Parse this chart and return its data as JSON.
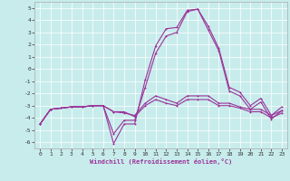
{
  "xlabel": "Windchill (Refroidissement éolien,°C)",
  "bg_color": "#c8ecec",
  "line_color": "#993399",
  "grid_color": "#ffffff",
  "xlim": [
    -0.5,
    23.5
  ],
  "ylim": [
    -6.5,
    5.5
  ],
  "xticks": [
    0,
    1,
    2,
    3,
    4,
    5,
    6,
    7,
    8,
    9,
    10,
    11,
    12,
    13,
    14,
    15,
    16,
    17,
    18,
    19,
    20,
    21,
    22,
    23
  ],
  "yticks": [
    -6,
    -5,
    -4,
    -3,
    -2,
    -1,
    0,
    1,
    2,
    3,
    4,
    5
  ],
  "line1": [
    -4.5,
    -3.3,
    -3.2,
    -3.1,
    -3.1,
    -3.0,
    -3.0,
    -6.1,
    -4.5,
    -4.5,
    -0.9,
    1.9,
    3.3,
    3.4,
    4.8,
    4.9,
    3.5,
    1.7,
    -1.5,
    -1.9,
    -3.0,
    -2.4,
    -3.8,
    -3.1
  ],
  "line2": [
    -4.5,
    -3.3,
    -3.2,
    -3.1,
    -3.1,
    -3.0,
    -3.0,
    -5.3,
    -4.2,
    -4.2,
    -1.5,
    1.3,
    2.7,
    3.0,
    4.7,
    4.9,
    3.2,
    1.5,
    -1.8,
    -2.2,
    -3.3,
    -2.7,
    -4.1,
    -3.4
  ],
  "line3": [
    -4.5,
    -3.3,
    -3.2,
    -3.1,
    -3.1,
    -3.0,
    -3.0,
    -3.5,
    -3.6,
    -3.8,
    -2.8,
    -2.2,
    -2.5,
    -2.8,
    -2.2,
    -2.2,
    -2.2,
    -2.8,
    -2.8,
    -3.1,
    -3.3,
    -3.3,
    -3.8,
    -3.4
  ],
  "line4": [
    -4.5,
    -3.3,
    -3.2,
    -3.1,
    -3.1,
    -3.0,
    -3.0,
    -3.5,
    -3.5,
    -3.9,
    -3.0,
    -2.5,
    -2.8,
    -3.0,
    -2.5,
    -2.5,
    -2.5,
    -3.0,
    -3.0,
    -3.2,
    -3.5,
    -3.5,
    -4.0,
    -3.6
  ]
}
